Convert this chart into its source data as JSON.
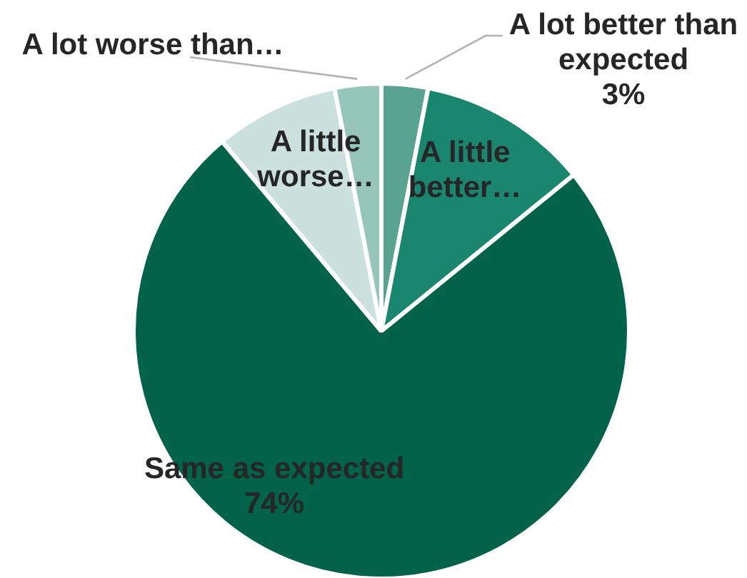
{
  "chart_data": {
    "type": "pie",
    "categories": [
      "A lot better than expected",
      "A little better…",
      "Same as expected",
      "A little worse…",
      "A lot worse than…"
    ],
    "values": [
      3,
      11,
      74,
      8,
      3
    ],
    "colors": [
      "#5ba391",
      "#1b8670",
      "#02634a",
      "#cbe1dd",
      "#96c5b9"
    ],
    "value_labels": [
      "3%",
      null,
      "74%",
      null,
      null
    ]
  }
}
